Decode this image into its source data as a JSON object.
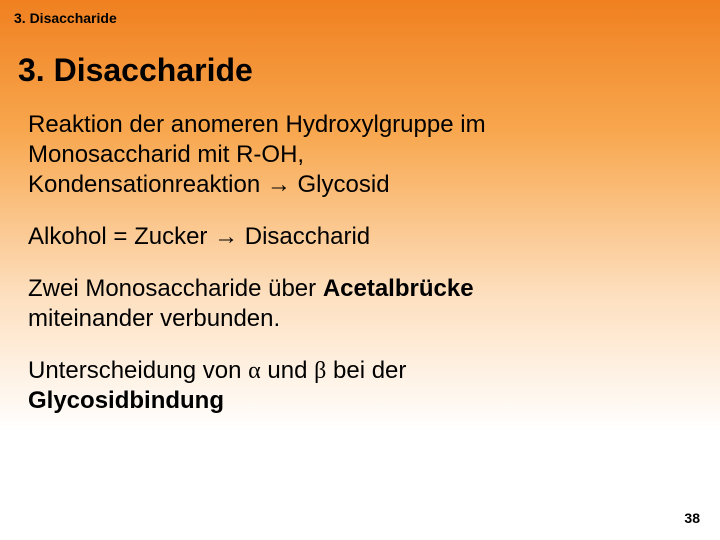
{
  "colors": {
    "gradient_top": "#f08020",
    "gradient_mid1": "#f8a850",
    "gradient_mid2": "#fde0c0",
    "gradient_bottom": "#ffffff",
    "text": "#000000"
  },
  "typography": {
    "family": "Verdana",
    "header_label_size_pt": 14,
    "title_size_pt": 32,
    "body_size_pt": 24,
    "page_num_size_pt": 14
  },
  "header_label": "3. Disaccharide",
  "title": "3. Disaccharide",
  "para1_line1": "Reaktion der anomeren Hydroxylgruppe im",
  "para1_line2": "Monosaccharid mit R-OH,",
  "para1_line3a": "Kondensationreaktion ",
  "arrow": "→",
  "para1_line3b": " Glycosid",
  "para2a": "Alkohol = Zucker ",
  "para2b": " Disaccharid",
  "para3_line1a": "Zwei Monosaccharide über ",
  "para3_line1_bold": "Acetalbrücke",
  "para3_line2": "miteinander verbunden.",
  "para4a": "Unterscheidung von ",
  "alpha": "α",
  "para4_und": " und ",
  "beta": "β",
  "para4b": " bei der",
  "para4_line2_bold": "Glycosidbindung",
  "page_number": "38"
}
